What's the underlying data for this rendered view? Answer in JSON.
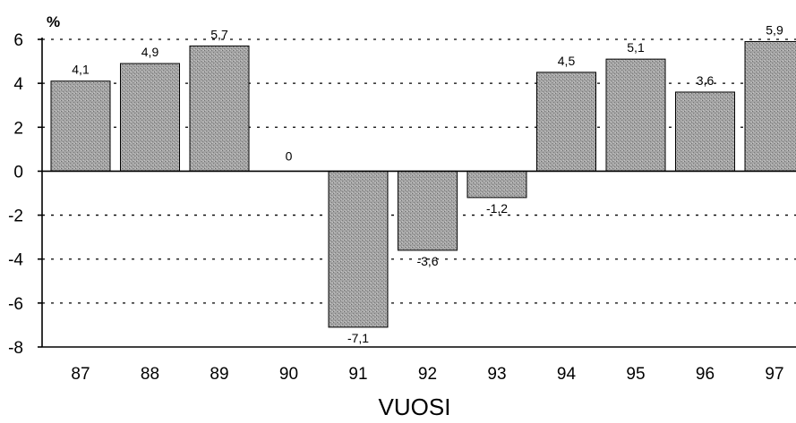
{
  "chart_data": {
    "type": "bar",
    "unit_label": "%",
    "xlabel": "VUOSI",
    "categories": [
      "87",
      "88",
      "89",
      "90",
      "91",
      "92",
      "93",
      "94",
      "95",
      "96",
      "97"
    ],
    "values": [
      4.1,
      4.9,
      5.7,
      0,
      -7.1,
      -3.6,
      -1.2,
      4.5,
      5.1,
      3.6,
      5.9
    ],
    "value_labels": [
      "4,1",
      "4,9",
      "5,7",
      "0",
      "-7,1",
      "-3,6",
      "-1,2",
      "4,5",
      "5,1",
      "3,6",
      "5,9"
    ],
    "ylim": [
      -8,
      6
    ],
    "yticks": [
      6,
      4,
      2,
      0,
      -2,
      -4,
      -6,
      -8
    ],
    "grid": true,
    "bar_color": "#9e9e9e"
  }
}
